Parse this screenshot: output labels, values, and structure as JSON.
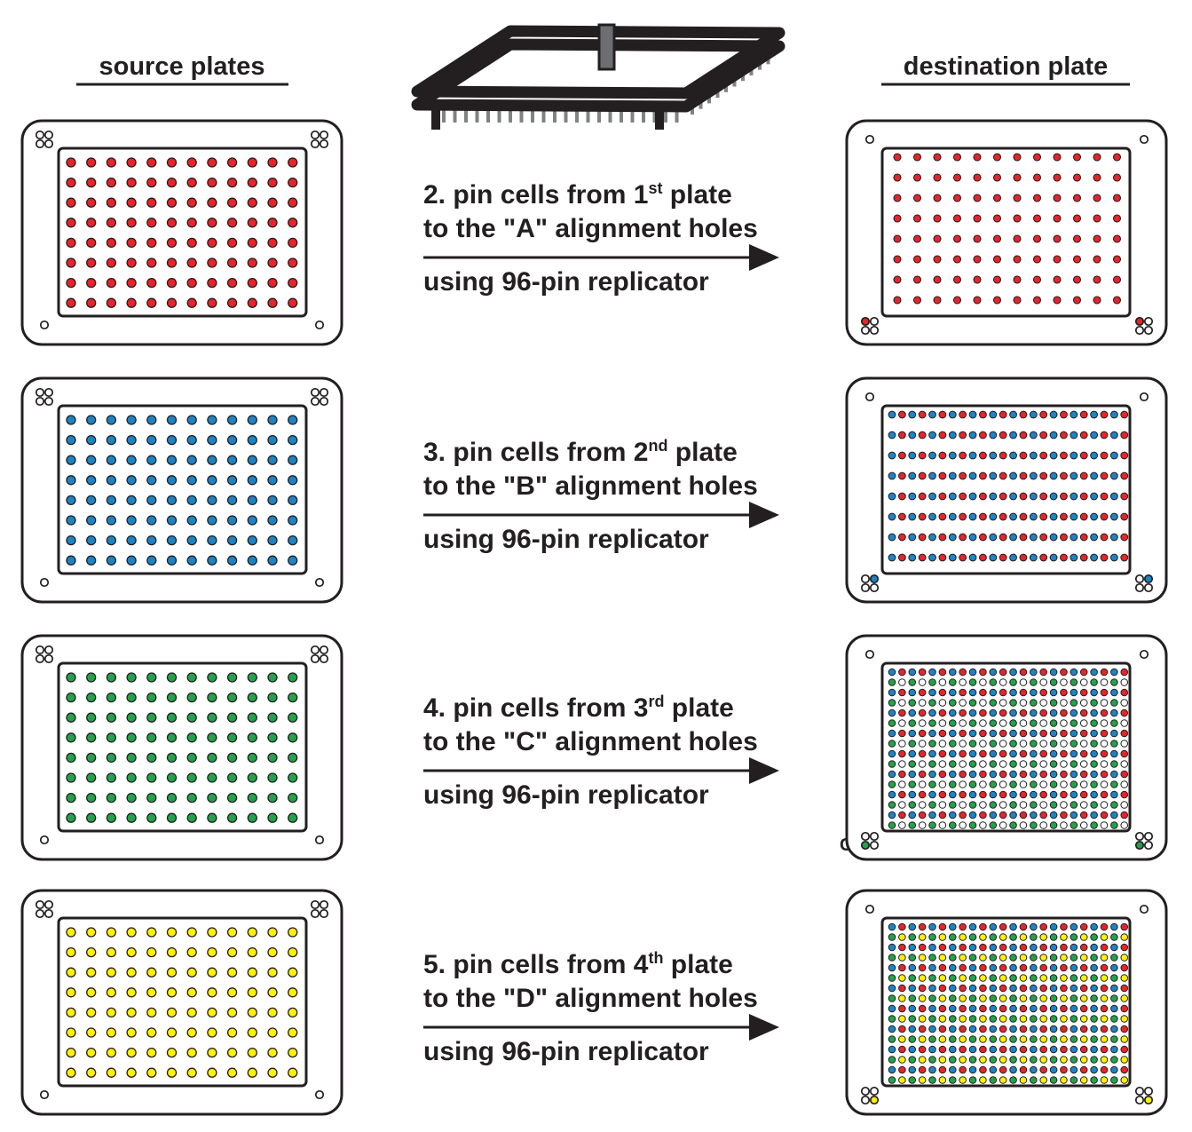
{
  "headings": {
    "source": "source plates",
    "destination": "destination plate"
  },
  "colors": {
    "outline": "#231f20",
    "red": "#e8232a",
    "blue": "#1b84c6",
    "green": "#22a24b",
    "yellow": "#fff200"
  },
  "steps": [
    {
      "number": "2.",
      "line1_pre": "pin cells from 1",
      "ordinal": "st",
      "line1_post": " plate",
      "line2": "to the \"A\" alignment holes",
      "line3": "using 96-pin replicator",
      "corner_label": "A",
      "source_color": "red",
      "destination_colors": [
        "red"
      ]
    },
    {
      "number": "3.",
      "line1_pre": "pin cells from 2",
      "ordinal": "nd",
      "line1_post": " plate",
      "line2": "to the \"B\" alignment holes",
      "line3": "using 96-pin replicator",
      "corner_label": "B",
      "source_color": "blue",
      "destination_colors": [
        "red",
        "blue"
      ]
    },
    {
      "number": "4.",
      "line1_pre": "pin cells from 3",
      "ordinal": "rd",
      "line1_post": " plate",
      "line2": "to the \"C\" alignment holes",
      "line3": "using 96-pin replicator",
      "corner_label": "C",
      "source_color": "green",
      "destination_colors": [
        "red",
        "blue",
        "green"
      ]
    },
    {
      "number": "5.",
      "line1_pre": "pin cells from 4",
      "ordinal": "th",
      "line1_post": " plate",
      "line2": "to the \"D\" alignment holes",
      "line3": "using 96-pin replicator",
      "corner_label": "D",
      "source_color": "yellow",
      "destination_colors": [
        "red",
        "blue",
        "green",
        "yellow"
      ]
    }
  ],
  "replicator": {
    "icon": "96-pin-replicator-icon",
    "pins": 96
  }
}
